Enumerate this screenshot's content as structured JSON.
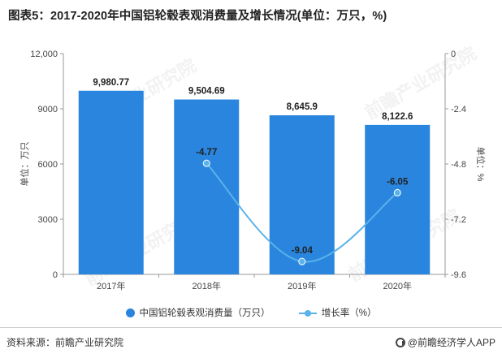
{
  "title": "图表5：2017-2020年中国铝轮毂表观消费量及增长情况(单位：万只，%)",
  "chart_data": {
    "type": "bar",
    "categories": [
      "2017年",
      "2018年",
      "2019年",
      "2020年"
    ],
    "series": [
      {
        "name": "中国铝轮毂表观消费量（万只）",
        "type": "bar",
        "axis": "left",
        "values": [
          9980.77,
          9504.69,
          8645.9,
          8122.6
        ],
        "labels": [
          "9,980.77",
          "9,504.69",
          "8,645.9",
          "8,122.6"
        ],
        "color": "#2a85de"
      },
      {
        "name": "增长率（%）",
        "type": "line",
        "axis": "right",
        "values": [
          null,
          -4.77,
          -9.04,
          -6.05
        ],
        "labels": [
          "",
          "-4.77",
          "-9.04",
          "-6.05"
        ],
        "color": "#5ab2ea"
      }
    ],
    "ylabel": "单位：万只",
    "y2label": "单位：%",
    "ylim": [
      0,
      12000
    ],
    "yticks": [
      "0",
      "3000",
      "6000",
      "9000",
      "12,000"
    ],
    "y2lim": [
      -9.6,
      0
    ],
    "y2ticks": [
      "-9.6",
      "-7.2",
      "-4.8",
      "-2.4",
      "0"
    ],
    "grid": false,
    "legend_position": "bottom"
  },
  "legend": {
    "bar_label": "中国铝轮毂表观消费量（万只）",
    "line_label": "增长率（%）"
  },
  "footer": {
    "source": "资料来源：前瞻产业研究院",
    "brand": "@前瞻经济学人APP"
  },
  "watermark": "前瞻产业研究院"
}
